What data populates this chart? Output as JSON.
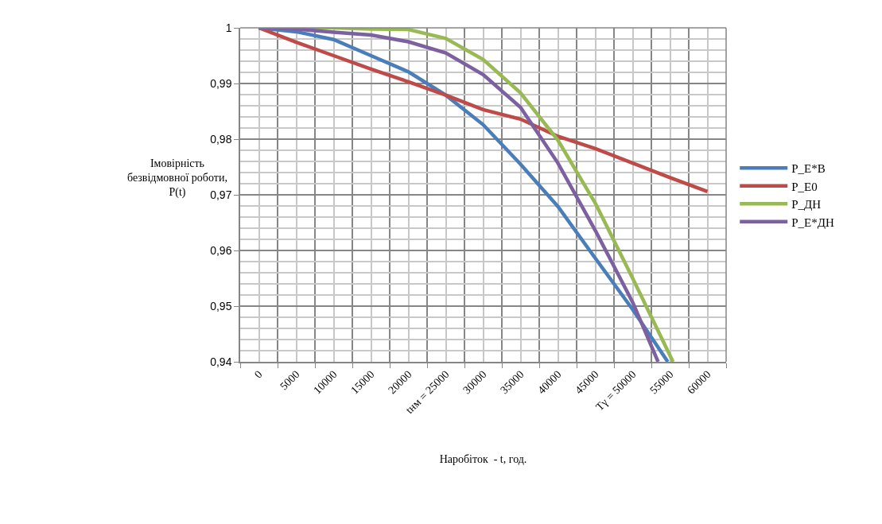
{
  "chart_data": {
    "type": "line",
    "xlabel": "Наробіток  - t, год.",
    "ylabel": "Імовірність\nбезвідмовної роботи,\nP(t)",
    "x": [
      0,
      5000,
      10000,
      15000,
      20000,
      25000,
      30000,
      35000,
      40000,
      45000,
      50000,
      55000,
      60000
    ],
    "series": [
      {
        "name": "P_E*B",
        "color": "#4a7ebb",
        "x": [
          0,
          5000,
          10000,
          15000,
          20000,
          25000,
          30000,
          35000,
          40000,
          45000,
          50000,
          54700
        ],
        "values": [
          1,
          0.9993,
          0.9979,
          0.995,
          0.9921,
          0.9879,
          0.9826,
          0.9755,
          0.9679,
          0.9586,
          0.9494,
          0.94
        ]
      },
      {
        "name": "P_E0",
        "color": "#be4b48",
        "values": [
          1,
          0.9974,
          0.995,
          0.9926,
          0.9903,
          0.9879,
          0.9853,
          0.9836,
          0.9805,
          0.9783,
          0.9757,
          0.9731,
          0.9706
        ]
      },
      {
        "name": "P_ДН",
        "color": "#98b954",
        "x": [
          0,
          5000,
          10000,
          15000,
          20000,
          25000,
          30000,
          35000,
          40000,
          45000,
          50000,
          55400
        ],
        "values": [
          1,
          1,
          1,
          0.9998,
          0.9997,
          0.9981,
          0.9943,
          0.9883,
          0.9798,
          0.9685,
          0.955,
          0.94
        ]
      },
      {
        "name": "P_E*ДН",
        "color": "#7d60a0",
        "x": [
          0,
          5000,
          10000,
          15000,
          20000,
          25000,
          30000,
          35000,
          40000,
          45000,
          50000,
          53400
        ],
        "values": [
          1,
          0.9998,
          0.9992,
          0.9987,
          0.9975,
          0.9955,
          0.9916,
          0.9857,
          0.9757,
          0.9636,
          0.9507,
          0.94
        ]
      }
    ],
    "xlim": [
      -2500,
      62500
    ],
    "xticks": [
      0,
      5000,
      10000,
      15000,
      20000,
      {
        "value": 25000,
        "label": "tнм = 25000"
      },
      30000,
      35000,
      40000,
      45000,
      {
        "value": 50000,
        "label": "Tγ = 50000"
      },
      55000,
      60000
    ],
    "ylim": [
      0.94,
      1
    ],
    "yticks": [
      {
        "value": 0.94,
        "label": "0,94"
      },
      {
        "value": 0.95,
        "label": "0,95"
      },
      {
        "value": 0.96,
        "label": "0,96"
      },
      {
        "value": 0.97,
        "label": "0,97"
      },
      {
        "value": 0.98,
        "label": "0,98"
      },
      {
        "value": 0.99,
        "label": "0,99"
      },
      1
    ],
    "grid": true,
    "legend": "right",
    "marker": "none",
    "line_style": "solid"
  }
}
